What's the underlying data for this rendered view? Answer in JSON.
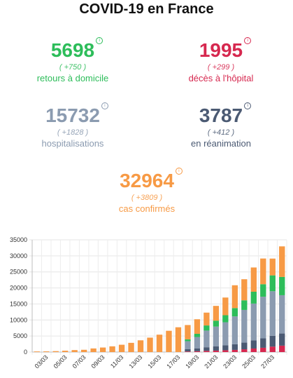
{
  "title": "COVID-19 en France",
  "stats": {
    "retours": {
      "value": "5698",
      "delta": "( +750 )",
      "label": "retours à domicile",
      "color": "#2dbd5a"
    },
    "deces": {
      "value": "1995",
      "delta": "( +299 )",
      "label": "décès à l'hôpital",
      "color": "#d6284f"
    },
    "hosp": {
      "value": "15732",
      "delta": "( +1828 )",
      "label": "hospitalisations",
      "color": "#8b9bb0"
    },
    "rea": {
      "value": "3787",
      "delta": "( +412 )",
      "label": "en réanimation",
      "color": "#4b5a73"
    },
    "cas": {
      "value": "32964",
      "delta": "( +3809 )",
      "label": "cas confirmés",
      "color": "#f79a45"
    }
  },
  "chart_data": {
    "type": "bar",
    "stacked": true,
    "categories": [
      "02/03",
      "03/03",
      "04/03",
      "05/03",
      "06/03",
      "07/03",
      "08/03",
      "09/03",
      "10/03",
      "11/03",
      "12/03",
      "13/03",
      "14/03",
      "15/03",
      "16/03",
      "17/03",
      "18/03",
      "19/03",
      "20/03",
      "21/03",
      "22/03",
      "23/03",
      "24/03",
      "25/03",
      "26/03",
      "27/03",
      "28/03"
    ],
    "xtick_labels": [
      "03/03",
      "05/03",
      "07/03",
      "09/03",
      "11/03",
      "13/03",
      "15/03",
      "17/03",
      "19/03",
      "21/03",
      "23/03",
      "25/03",
      "27/03"
    ],
    "yticks": [
      0,
      5000,
      10000,
      15000,
      20000,
      25000,
      30000,
      35000
    ],
    "ylim": [
      0,
      35000
    ],
    "grid": true,
    "series": [
      {
        "key": "deces",
        "color": "#d6284f",
        "values": [
          0,
          0,
          0,
          0,
          0,
          0,
          0,
          0,
          0,
          0,
          0,
          0,
          0,
          0,
          0,
          0,
          175,
          244,
          372,
          450,
          562,
          674,
          860,
          1100,
          1331,
          1696,
          1995
        ]
      },
      {
        "key": "rea",
        "color": "#4b5a73",
        "values": [
          0,
          0,
          0,
          0,
          0,
          0,
          0,
          0,
          0,
          0,
          0,
          0,
          0,
          0,
          0,
          0,
          700,
          850,
          1122,
          1297,
          1525,
          1746,
          2080,
          2516,
          2931,
          3375,
          3787
        ]
      },
      {
        "key": "hosp",
        "color": "#8b9bb0",
        "values": [
          0,
          0,
          0,
          0,
          0,
          0,
          0,
          0,
          0,
          0,
          0,
          0,
          0,
          0,
          0,
          0,
          2500,
          3600,
          5200,
          6200,
          7200,
          8700,
          10200,
          11500,
          13000,
          13900,
          11950
        ]
      },
      {
        "key": "retours",
        "color": "#2dbd5a",
        "values": [
          0,
          0,
          0,
          0,
          0,
          0,
          0,
          0,
          0,
          0,
          0,
          0,
          0,
          0,
          0,
          0,
          600,
          1000,
          1600,
          1850,
          2200,
          2600,
          3000,
          3700,
          3900,
          4950,
          5698
        ]
      },
      {
        "key": "cas",
        "color": "#f79a45",
        "values": [
          190,
          212,
          285,
          423,
          613,
          706,
          1126,
          1412,
          1784,
          2281,
          2876,
          3661,
          4499,
          5423,
          6633,
          7730,
          4455,
          4536,
          4006,
          4603,
          5520,
          7113,
          6573,
          7564,
          8016,
          5234,
          9534
        ]
      }
    ]
  }
}
